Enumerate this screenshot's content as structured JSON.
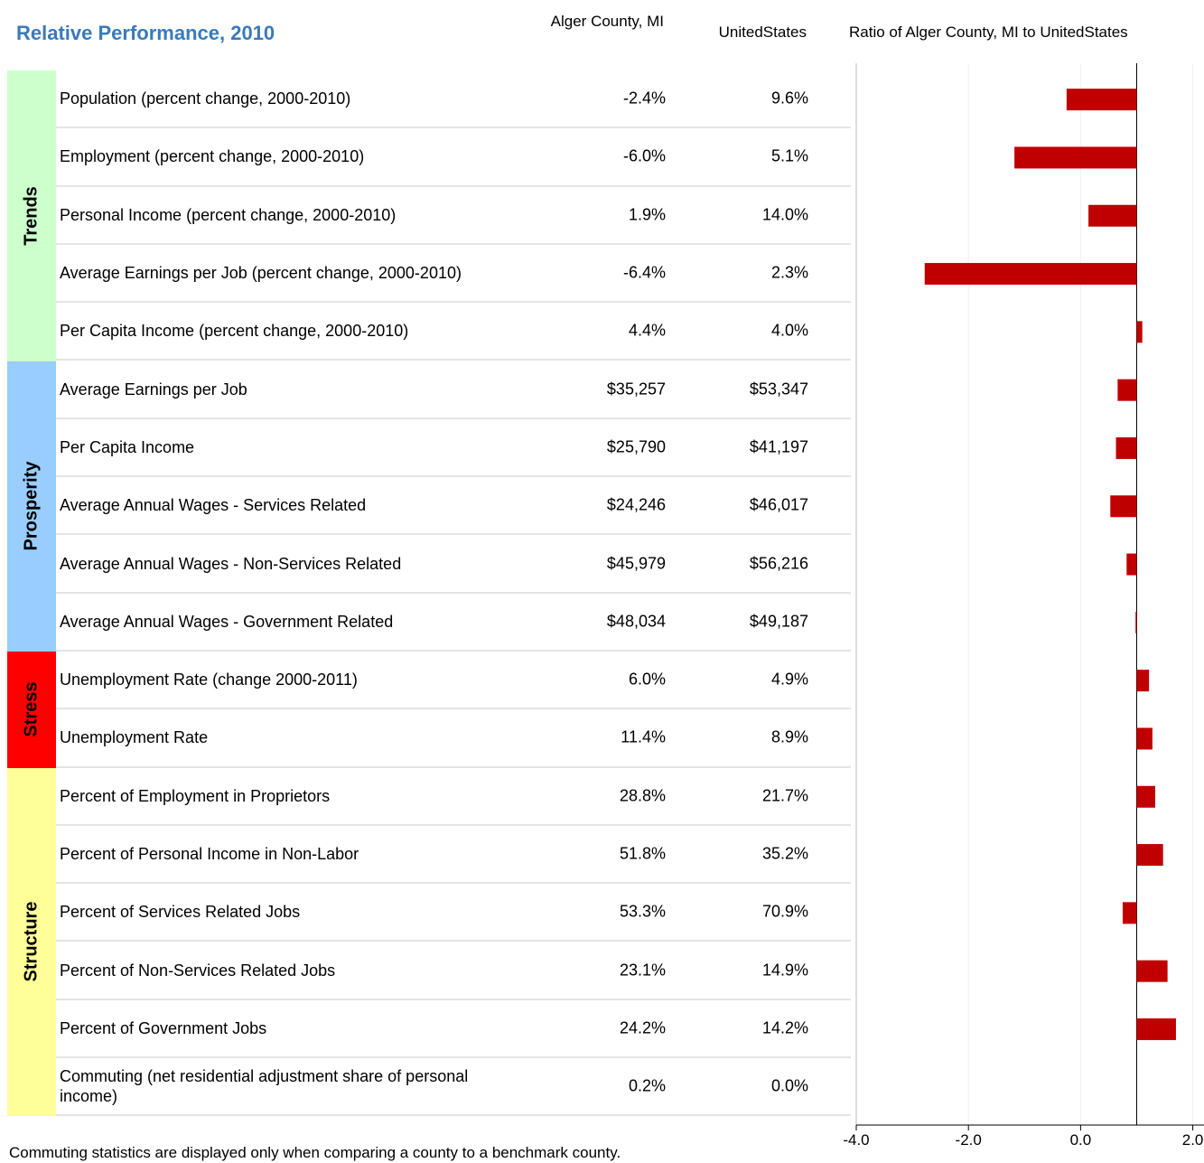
{
  "title": "Relative Performance, 2010",
  "columns": {
    "county": "Alger County, MI",
    "us": "UnitedStates",
    "chart_title": "Ratio of Alger County, MI to UnitedStates"
  },
  "groups": [
    {
      "name": "Trends",
      "color": "#ccffcc",
      "rows": [
        {
          "label": "Population (percent change, 2000-2010)",
          "county": "-2.4%",
          "us": "9.6%",
          "ratio": -0.25
        },
        {
          "label": "Employment (percent change, 2000-2010)",
          "county": "-6.0%",
          "us": "5.1%",
          "ratio": -1.18
        },
        {
          "label": "Personal Income (percent change, 2000-2010)",
          "county": "1.9%",
          "us": "14.0%",
          "ratio": 0.14
        },
        {
          "label": "Average Earnings per Job (percent change, 2000-2010)",
          "county": "-6.4%",
          "us": "2.3%",
          "ratio": -2.78
        },
        {
          "label": "Per Capita Income (percent change, 2000-2010)",
          "county": "4.4%",
          "us": "4.0%",
          "ratio": 1.1
        }
      ]
    },
    {
      "name": "Prosperity",
      "color": "#99ccff",
      "rows": [
        {
          "label": "Average Earnings per Job",
          "county": "$35,257",
          "us": "$53,347",
          "ratio": 0.66
        },
        {
          "label": "Per Capita Income",
          "county": "$25,790",
          "us": "$41,197",
          "ratio": 0.63
        },
        {
          "label": "Average Annual Wages - Services Related",
          "county": "$24,246",
          "us": "$46,017",
          "ratio": 0.53
        },
        {
          "label": "Average Annual Wages - Non-Services Related",
          "county": "$45,979",
          "us": "$56,216",
          "ratio": 0.82
        },
        {
          "label": "Average Annual Wages - Government Related",
          "county": "$48,034",
          "us": "$49,187",
          "ratio": 0.98
        }
      ]
    },
    {
      "name": "Stress",
      "color": "#ff0000",
      "rows": [
        {
          "label": "Unemployment Rate (change 2000-2011)",
          "county": "6.0%",
          "us": "4.9%",
          "ratio": 1.22
        },
        {
          "label": "Unemployment Rate",
          "county": "11.4%",
          "us": "8.9%",
          "ratio": 1.28
        }
      ]
    },
    {
      "name": "Structure",
      "color": "#ffff99",
      "rows": [
        {
          "label": "Percent of Employment in Proprietors",
          "county": "28.8%",
          "us": "21.7%",
          "ratio": 1.33
        },
        {
          "label": "Percent of Personal Income in Non-Labor",
          "county": "51.8%",
          "us": "35.2%",
          "ratio": 1.47
        },
        {
          "label": "Percent of Services Related Jobs",
          "county": "53.3%",
          "us": "70.9%",
          "ratio": 0.75
        },
        {
          "label": "Percent of Non-Services Related Jobs",
          "county": "23.1%",
          "us": "14.9%",
          "ratio": 1.55
        },
        {
          "label": "Percent of Government Jobs",
          "county": "24.2%",
          "us": "14.2%",
          "ratio": 1.7
        },
        {
          "label": "Commuting (net residential adjustment share of personal income)",
          "county": "0.2%",
          "us": "0.0%"
        }
      ]
    }
  ],
  "chart": {
    "type": "bar",
    "xlim": [
      -4,
      2.2
    ],
    "xticks": [
      {
        "value": -4,
        "label": "-4.0"
      },
      {
        "value": -2,
        "label": "-2.0"
      },
      {
        "value": 0,
        "label": "0.0"
      },
      {
        "value": 2,
        "label": "2.0"
      }
    ],
    "reference_line": 1,
    "color": "#c00000",
    "grid": true
  },
  "footnote": "Commuting statistics are displayed only when comparing a county to a benchmark county."
}
